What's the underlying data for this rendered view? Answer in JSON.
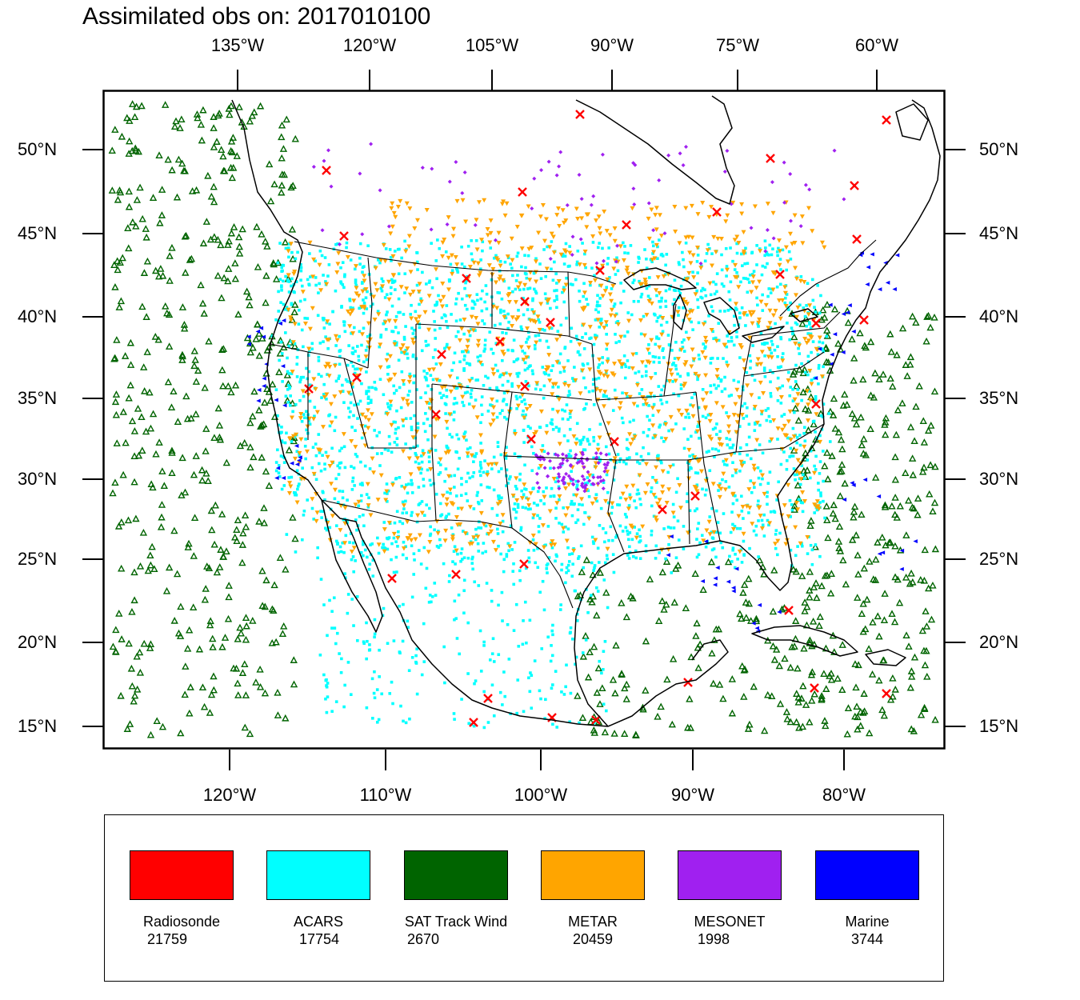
{
  "title": "Assimilated obs on: 2017010100",
  "axes": {
    "top_lon_labels": [
      "135°W",
      "120°W",
      "105°W",
      "90°W",
      "75°W",
      "60°W"
    ],
    "bottom_lon_labels": [
      "120°W",
      "110°W",
      "100°W",
      "90°W",
      "80°W"
    ],
    "lat_labels": [
      "50°N",
      "45°N",
      "40°N",
      "35°N",
      "30°N",
      "25°N",
      "20°N",
      "15°N"
    ]
  },
  "legend": [
    {
      "name": "Radiosonde",
      "count": "21759",
      "color": "#ff0000",
      "marker": "x-cross-icon"
    },
    {
      "name": "ACARS",
      "count": "17754",
      "color": "#00ffff",
      "marker": "square-dot-icon"
    },
    {
      "name": "SAT Track Wind",
      "count": "2670",
      "color": "#006400",
      "marker": "triangle-outline-icon"
    },
    {
      "name": "METAR",
      "count": "20459",
      "color": "#ffa500",
      "marker": "triangle-down-icon"
    },
    {
      "name": "MESONET",
      "count": "1998",
      "color": "#a020f0",
      "marker": "diamond-icon"
    },
    {
      "name": "Marine",
      "count": "3744",
      "color": "#0000ff",
      "marker": "triangle-left-icon"
    }
  ]
}
